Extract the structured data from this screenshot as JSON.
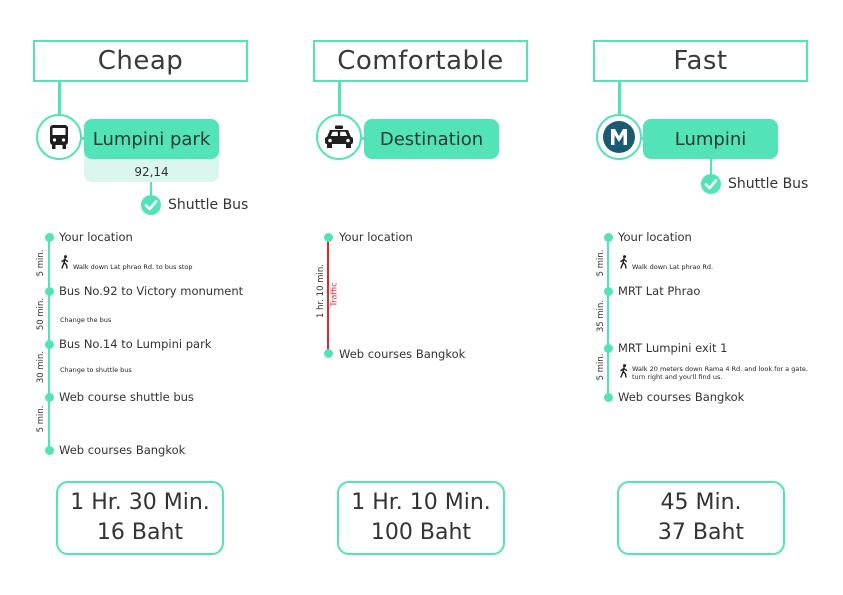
{
  "colors": {
    "accent": "#52e3b9",
    "accent_light": "#d9f7ee",
    "traffic": "#e0262a",
    "dark": "#1e1e1e",
    "metro": "#1a5a74"
  },
  "columns": [
    {
      "title": "Cheap",
      "icon": "bus-icon",
      "destination": "Lumpini park",
      "bus_numbers": "92,14",
      "shuttle": "Shuttle Bus",
      "stops": [
        "Your location",
        "Bus No.92 to Victory monument",
        "Bus No.14 to Lumpini park",
        "Web course shuttle bus",
        "Web courses Bangkok"
      ],
      "notes": [
        "Walk down Lat phrao Rd. to bus stop",
        "Change the bus",
        "Change to shuttle bus"
      ],
      "durations": [
        "5 min.",
        "50 min.",
        "30 min.",
        "5 min."
      ],
      "summary_time": "1 Hr. 30 Min.",
      "summary_cost": "16 Baht"
    },
    {
      "title": "Comfortable",
      "icon": "taxi-icon",
      "destination": "Destination",
      "stops": [
        "Your location",
        "Web courses Bangkok"
      ],
      "durations": [
        "1 hr. 10 min."
      ],
      "traffic": "Traffic",
      "summary_time": "1 Hr. 10 Min.",
      "summary_cost": "100 Baht"
    },
    {
      "title": "Fast",
      "icon": "metro-icon",
      "destination": "Lumpini",
      "shuttle": "Shuttle Bus",
      "stops": [
        "Your location",
        "MRT Lat Phrao",
        "MRT Lumpini exit 1",
        "Web courses Bangkok"
      ],
      "notes": [
        "Walk down Lat phrao Rd.",
        "Walk 20 meters down Rama 4 Rd. and look for a gate,",
        "turn right and you'll find us."
      ],
      "durations": [
        "5 min.",
        "35 min.",
        "5 min."
      ],
      "summary_time": "45 Min.",
      "summary_cost": "37 Baht"
    }
  ]
}
